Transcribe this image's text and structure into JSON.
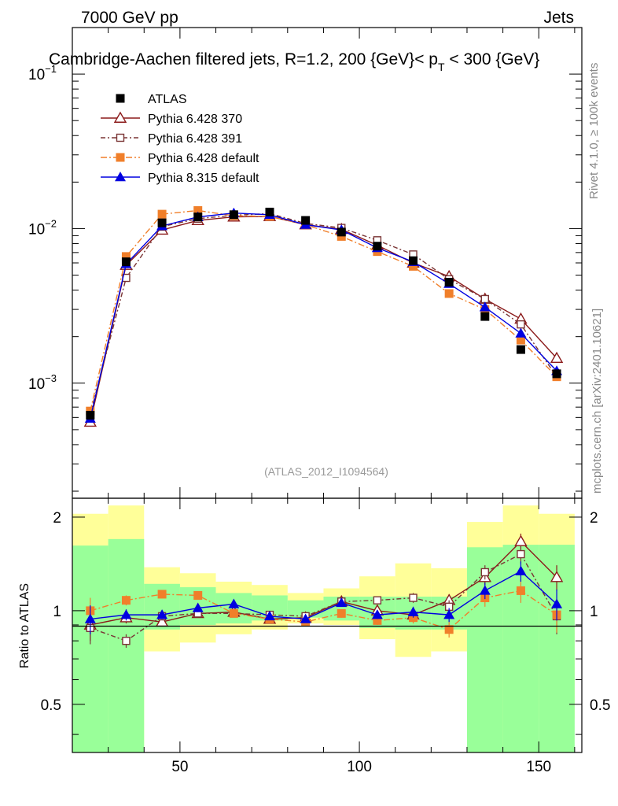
{
  "header": {
    "left": "7000 GeV pp",
    "right": "Jets"
  },
  "chart_data": {
    "type": "scatter",
    "title": "Cambridge-Aachen filtered jets, R=1.2, 200 {GeV}< p_T < 300 {GeV}",
    "analysis_id": "(ATLAS_2012_I1094564)",
    "side_label_top": "Rivet 4.1.0, ≥ 100k events",
    "side_label_bottom": "mcplots.cern.ch [arXiv:2401.10621]",
    "xlim": [
      20,
      162
    ],
    "main": {
      "yscale": "log",
      "ylim": [
        0.00018,
        0.2
      ],
      "ytick_labels": [
        {
          "value": 0.1,
          "base": "10",
          "exp": "−1"
        },
        {
          "value": 0.01,
          "base": "10",
          "exp": "−2"
        },
        {
          "value": 0.001,
          "base": "10",
          "exp": "−3"
        }
      ]
    },
    "ratio": {
      "ylabel": "Ratio to ATLAS",
      "ylim": [
        0.35,
        2.3
      ],
      "yticks": [
        0.5,
        1,
        2
      ],
      "ytick_labels": [
        "0.5",
        "1",
        "2"
      ]
    },
    "xtick_labels": [
      {
        "value": 50,
        "label": "50"
      },
      {
        "value": 100,
        "label": "100"
      },
      {
        "value": 150,
        "label": "150"
      }
    ],
    "x": [
      25,
      35,
      45,
      55,
      65,
      75,
      85,
      95,
      105,
      115,
      125,
      135,
      145,
      155
    ],
    "bin_edges": [
      20,
      30,
      40,
      50,
      60,
      70,
      80,
      90,
      100,
      110,
      120,
      130,
      140,
      150,
      160
    ],
    "data": {
      "name": "ATLAS",
      "values": [
        0.00062,
        0.0061,
        0.0109,
        0.0119,
        0.0123,
        0.0128,
        0.0113,
        0.0095,
        0.0077,
        0.0062,
        0.0045,
        0.0027,
        0.00165,
        0.00115
      ],
      "band_green": [
        [
          0.35,
          1.62
        ],
        [
          0.35,
          1.7
        ],
        [
          0.87,
          1.22
        ],
        [
          0.9,
          1.19
        ],
        [
          0.91,
          1.14
        ],
        [
          0.93,
          1.12
        ],
        [
          0.95,
          1.08
        ],
        [
          0.93,
          1.11
        ],
        [
          0.88,
          1.11
        ],
        [
          0.87,
          1.11
        ],
        [
          0.87,
          1.11
        ],
        [
          0.35,
          1.6
        ],
        [
          0.35,
          1.63
        ],
        [
          0.35,
          1.63
        ]
      ],
      "band_yellow": [
        [
          0.45,
          2.05
        ],
        [
          0.35,
          2.18
        ],
        [
          0.74,
          1.38
        ],
        [
          0.79,
          1.32
        ],
        [
          0.84,
          1.24
        ],
        [
          0.87,
          1.21
        ],
        [
          0.91,
          1.14
        ],
        [
          0.9,
          1.18
        ],
        [
          0.81,
          1.29
        ],
        [
          0.71,
          1.42
        ],
        [
          0.74,
          1.37
        ],
        [
          0.53,
          1.93
        ],
        [
          0.35,
          2.18
        ],
        [
          0.45,
          2.05
        ]
      ]
    },
    "series": [
      {
        "name": "Pythia 6.428 370",
        "color": "#8b1a1a",
        "marker": "triangle-open",
        "dash": "",
        "values": [
          0.00056,
          0.0058,
          0.0098,
          0.0113,
          0.0119,
          0.012,
          0.0106,
          0.0099,
          0.0078,
          0.006,
          0.0049,
          0.0035,
          0.0026,
          0.00145
        ],
        "ratio": [
          0.9,
          0.95,
          0.92,
          0.98,
          0.99,
          0.94,
          0.95,
          1.07,
          1.0,
          0.97,
          1.08,
          1.28,
          1.67,
          1.28
        ],
        "ratio_err": [
          0.1,
          0.04,
          0.03,
          0.03,
          0.02,
          0.02,
          0.02,
          0.03,
          0.03,
          0.04,
          0.05,
          0.07,
          0.1,
          0.12
        ]
      },
      {
        "name": "Pythia 6.428 391",
        "color": "#7a3535",
        "marker": "square-open",
        "dash": "6,3,2,3",
        "values": [
          0.00063,
          0.0048,
          0.0103,
          0.0116,
          0.0122,
          0.0125,
          0.0108,
          0.0101,
          0.0084,
          0.0068,
          0.0047,
          0.0035,
          0.0024,
          0.0011
        ],
        "ratio": [
          0.88,
          0.8,
          0.96,
          0.98,
          0.98,
          0.97,
          0.96,
          1.07,
          1.08,
          1.1,
          1.03,
          1.33,
          1.52,
          0.96
        ],
        "ratio_err": [
          0.1,
          0.04,
          0.03,
          0.03,
          0.02,
          0.02,
          0.02,
          0.03,
          0.03,
          0.04,
          0.05,
          0.07,
          0.1,
          0.12
        ]
      },
      {
        "name": "Pythia 6.428 default",
        "color": "#f07f2a",
        "marker": "square-filled",
        "dash": "8,3,2,3",
        "values": [
          0.00066,
          0.0066,
          0.0124,
          0.0131,
          0.0121,
          0.012,
          0.0106,
          0.0089,
          0.0071,
          0.0057,
          0.0038,
          0.003,
          0.0019,
          0.0011
        ],
        "ratio": [
          1.0,
          1.08,
          1.13,
          1.12,
          0.98,
          0.94,
          0.92,
          0.98,
          0.93,
          0.95,
          0.87,
          1.1,
          1.16,
          0.97
        ],
        "ratio_err": [
          0.1,
          0.04,
          0.03,
          0.03,
          0.02,
          0.02,
          0.02,
          0.03,
          0.03,
          0.04,
          0.05,
          0.07,
          0.1,
          0.12
        ]
      },
      {
        "name": "Pythia 8.315 default",
        "color": "#0000e0",
        "marker": "triangle-filled",
        "dash": "",
        "values": [
          0.00059,
          0.0059,
          0.0104,
          0.0119,
          0.0126,
          0.0123,
          0.0106,
          0.0098,
          0.0075,
          0.0061,
          0.0044,
          0.0031,
          0.0021,
          0.0012
        ],
        "ratio": [
          0.94,
          0.97,
          0.97,
          1.02,
          1.05,
          0.96,
          0.94,
          1.06,
          0.97,
          0.99,
          0.97,
          1.16,
          1.34,
          1.05
        ],
        "ratio_err": [
          0.1,
          0.04,
          0.03,
          0.03,
          0.02,
          0.02,
          0.02,
          0.03,
          0.03,
          0.04,
          0.05,
          0.07,
          0.1,
          0.12
        ]
      }
    ]
  }
}
